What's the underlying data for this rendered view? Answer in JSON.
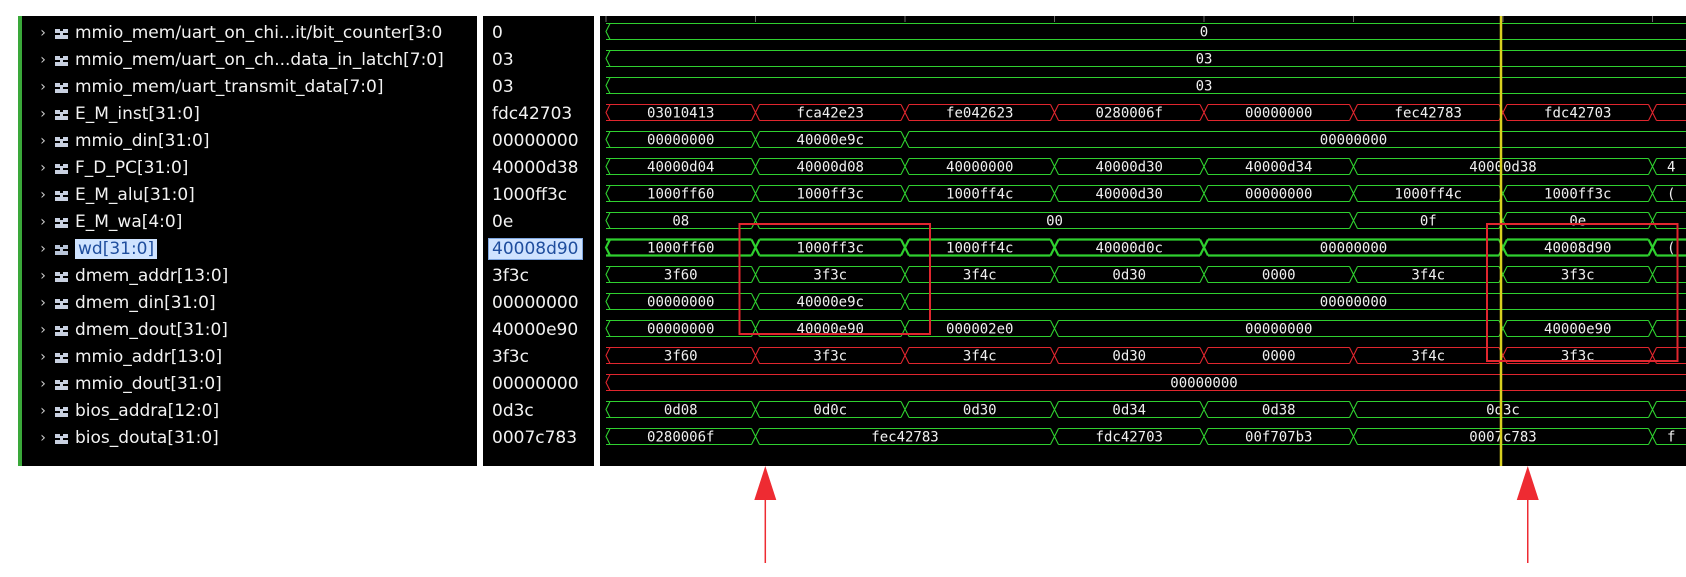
{
  "colors": {
    "bus_green": "#2fd02f",
    "bus_red": "#e0262e",
    "cursor_yellow": "#d8d020",
    "highlight_box": "#e0262e",
    "annotation_arrow": "#ee2b32",
    "sidebar_green": "#3aa83a"
  },
  "icons": {
    "bus_signal": "bus-signal-icon",
    "selected_signal": "bus-signal-selected-icon",
    "expand": "chevron-right-icon"
  },
  "signals": [
    {
      "name": "mmio_mem/uart_on_chi...it/bit_counter[3:0",
      "value": "0",
      "color": "green"
    },
    {
      "name": "mmio_mem/uart_on_ch...data_in_latch[7:0]",
      "value": "03",
      "color": "green"
    },
    {
      "name": "mmio_mem/uart_transmit_data[7:0]",
      "value": "03",
      "color": "green"
    },
    {
      "name": "E_M_inst[31:0]",
      "value": "fdc42703",
      "color": "red"
    },
    {
      "name": "mmio_din[31:0]",
      "value": "00000000",
      "color": "green"
    },
    {
      "name": "F_D_PC[31:0]",
      "value": "40000d38",
      "color": "green"
    },
    {
      "name": "E_M_alu[31:0]",
      "value": "1000ff3c",
      "color": "green"
    },
    {
      "name": "E_M_wa[4:0]",
      "value": "0e",
      "color": "green"
    },
    {
      "name": "wd[31:0]",
      "value": "40008d90",
      "color": "green",
      "selected": true
    },
    {
      "name": "dmem_addr[13:0]",
      "value": "3f3c",
      "color": "green"
    },
    {
      "name": "dmem_din[31:0]",
      "value": "00000000",
      "color": "green"
    },
    {
      "name": "dmem_dout[31:0]",
      "value": "40000e90",
      "color": "green"
    },
    {
      "name": "mmio_addr[13:0]",
      "value": "3f3c",
      "color": "red"
    },
    {
      "name": "mmio_dout[31:0]",
      "value": "00000000",
      "color": "red"
    },
    {
      "name": "bios_addra[12:0]",
      "value": "0d3c",
      "color": "green"
    },
    {
      "name": "bios_douta[31:0]",
      "value": "0007c783",
      "color": "green"
    }
  ],
  "waves": [
    {
      "segments": [
        {
          "s": 0,
          "e": 8,
          "label": "0"
        }
      ],
      "open_end": true
    },
    {
      "segments": [
        {
          "s": 0,
          "e": 8,
          "label": "03"
        }
      ],
      "open_end": true
    },
    {
      "segments": [
        {
          "s": 0,
          "e": 8,
          "label": "03"
        }
      ],
      "open_end": true
    },
    {
      "segments": [
        {
          "s": 0,
          "e": 1,
          "label": "03010413"
        },
        {
          "s": 1,
          "e": 2,
          "label": "fca42e23"
        },
        {
          "s": 2,
          "e": 3,
          "label": "fe042623"
        },
        {
          "s": 3,
          "e": 4,
          "label": "0280006f"
        },
        {
          "s": 4,
          "e": 5,
          "label": "00000000"
        },
        {
          "s": 5,
          "e": 6,
          "label": "fec42783"
        },
        {
          "s": 6,
          "e": 7,
          "label": "fdc42703"
        },
        {
          "s": 7,
          "e": 8,
          "label": ""
        }
      ],
      "open_end": true
    },
    {
      "segments": [
        {
          "s": 0,
          "e": 1,
          "label": "00000000"
        },
        {
          "s": 1,
          "e": 2,
          "label": "40000e9c"
        },
        {
          "s": 2,
          "e": 8,
          "label": "00000000"
        }
      ],
      "open_end": true
    },
    {
      "segments": [
        {
          "s": 0,
          "e": 1,
          "label": "40000d04"
        },
        {
          "s": 1,
          "e": 2,
          "label": "40000d08"
        },
        {
          "s": 2,
          "e": 3,
          "label": "40000000"
        },
        {
          "s": 3,
          "e": 4,
          "label": "40000d30"
        },
        {
          "s": 4,
          "e": 5,
          "label": "40000d34"
        },
        {
          "s": 5,
          "e": 7,
          "label": "40000d38"
        },
        {
          "s": 7,
          "e": 8,
          "label": "4"
        }
      ],
      "open_end": true
    },
    {
      "segments": [
        {
          "s": 0,
          "e": 1,
          "label": "1000ff60"
        },
        {
          "s": 1,
          "e": 2,
          "label": "1000ff3c"
        },
        {
          "s": 2,
          "e": 3,
          "label": "1000ff4c"
        },
        {
          "s": 3,
          "e": 4,
          "label": "40000d30"
        },
        {
          "s": 4,
          "e": 5,
          "label": "00000000"
        },
        {
          "s": 5,
          "e": 6,
          "label": "1000ff4c"
        },
        {
          "s": 6,
          "e": 7,
          "label": "1000ff3c"
        },
        {
          "s": 7,
          "e": 8,
          "label": "("
        }
      ],
      "open_end": true
    },
    {
      "segments": [
        {
          "s": 0,
          "e": 1,
          "label": "08"
        },
        {
          "s": 1,
          "e": 5,
          "label": "00"
        },
        {
          "s": 5,
          "e": 6,
          "label": "0f"
        },
        {
          "s": 6,
          "e": 7,
          "label": "0e"
        },
        {
          "s": 7,
          "e": 8,
          "label": ""
        }
      ],
      "open_end": true
    },
    {
      "segments": [
        {
          "s": 0,
          "e": 1,
          "label": "1000ff60"
        },
        {
          "s": 1,
          "e": 2,
          "label": "1000ff3c"
        },
        {
          "s": 2,
          "e": 3,
          "label": "1000ff4c"
        },
        {
          "s": 3,
          "e": 4,
          "label": "40000d0c"
        },
        {
          "s": 4,
          "e": 6,
          "label": "00000000"
        },
        {
          "s": 6,
          "e": 7,
          "label": "40008d90"
        },
        {
          "s": 7,
          "e": 8,
          "label": "("
        }
      ],
      "open_end": true,
      "bold": true
    },
    {
      "segments": [
        {
          "s": 0,
          "e": 1,
          "label": "3f60"
        },
        {
          "s": 1,
          "e": 2,
          "label": "3f3c"
        },
        {
          "s": 2,
          "e": 3,
          "label": "3f4c"
        },
        {
          "s": 3,
          "e": 4,
          "label": "0d30"
        },
        {
          "s": 4,
          "e": 5,
          "label": "0000"
        },
        {
          "s": 5,
          "e": 6,
          "label": "3f4c"
        },
        {
          "s": 6,
          "e": 7,
          "label": "3f3c"
        },
        {
          "s": 7,
          "e": 8,
          "label": ""
        }
      ],
      "open_end": true
    },
    {
      "segments": [
        {
          "s": 0,
          "e": 1,
          "label": "00000000"
        },
        {
          "s": 1,
          "e": 2,
          "label": "40000e9c"
        },
        {
          "s": 2,
          "e": 8,
          "label": "00000000"
        }
      ],
      "open_end": true
    },
    {
      "segments": [
        {
          "s": 0,
          "e": 1,
          "label": "00000000"
        },
        {
          "s": 1,
          "e": 2,
          "label": "40000e90"
        },
        {
          "s": 2,
          "e": 3,
          "label": "000002e0"
        },
        {
          "s": 3,
          "e": 6,
          "label": "00000000"
        },
        {
          "s": 6,
          "e": 7,
          "label": "40000e90"
        },
        {
          "s": 7,
          "e": 8,
          "label": ""
        }
      ],
      "open_end": true
    },
    {
      "segments": [
        {
          "s": 0,
          "e": 1,
          "label": "3f60"
        },
        {
          "s": 1,
          "e": 2,
          "label": "3f3c"
        },
        {
          "s": 2,
          "e": 3,
          "label": "3f4c"
        },
        {
          "s": 3,
          "e": 4,
          "label": "0d30"
        },
        {
          "s": 4,
          "e": 5,
          "label": "0000"
        },
        {
          "s": 5,
          "e": 6,
          "label": "3f4c"
        },
        {
          "s": 6,
          "e": 7,
          "label": "3f3c"
        },
        {
          "s": 7,
          "e": 8,
          "label": ""
        }
      ],
      "open_end": true
    },
    {
      "segments": [
        {
          "s": 0,
          "e": 8,
          "label": "00000000"
        }
      ],
      "open_end": true
    },
    {
      "segments": [
        {
          "s": 0,
          "e": 1,
          "label": "0d08"
        },
        {
          "s": 1,
          "e": 2,
          "label": "0d0c"
        },
        {
          "s": 2,
          "e": 3,
          "label": "0d30"
        },
        {
          "s": 3,
          "e": 4,
          "label": "0d34"
        },
        {
          "s": 4,
          "e": 5,
          "label": "0d38"
        },
        {
          "s": 5,
          "e": 7,
          "label": "0d3c"
        },
        {
          "s": 7,
          "e": 8,
          "label": ""
        }
      ],
      "open_end": true
    },
    {
      "segments": [
        {
          "s": 0,
          "e": 1,
          "label": "0280006f"
        },
        {
          "s": 1,
          "e": 3,
          "label": "fec42783"
        },
        {
          "s": 3,
          "e": 4,
          "label": "fdc42703"
        },
        {
          "s": 4,
          "e": 5,
          "label": "00f707b3"
        },
        {
          "s": 5,
          "e": 7,
          "label": "0007c783"
        },
        {
          "s": 7,
          "e": 8,
          "label": "f"
        }
      ],
      "open_end": true
    }
  ],
  "cursor": {
    "at_cycle": 6,
    "value_label": "40008d90"
  },
  "highlight_boxes": [
    {
      "from_cycle": 1,
      "to_cycle": 2,
      "first_row": 8,
      "last_row": 11
    },
    {
      "from_cycle": 6,
      "to_cycle": 7,
      "first_row": 8,
      "last_row": 12
    }
  ],
  "arrows": [
    {
      "cycle_edge": 1.4
    },
    {
      "cycle_edge": 6.5
    }
  ]
}
